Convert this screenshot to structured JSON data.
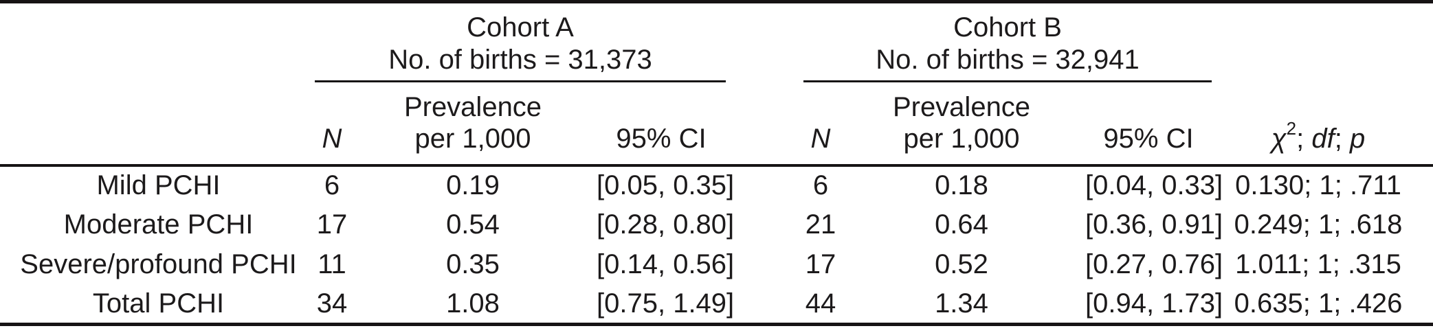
{
  "table": {
    "groups": [
      {
        "name": "Cohort A",
        "births_label": "No. of births = 31,373"
      },
      {
        "name": "Cohort B",
        "births_label": "No. of births = 32,941"
      }
    ],
    "columns": {
      "n_label": "N",
      "prevalence_line1": "Prevalence",
      "prevalence_line2": "per 1,000",
      "ci_label": "95% CI",
      "chi_header": {
        "symbol": "χ",
        "superscript": "2",
        "sep1": "; ",
        "df": "df",
        "sep2": "; ",
        "p": "p"
      }
    },
    "rows": [
      {
        "label": "Mild PCHI",
        "a_n": "6",
        "a_prev": "0.19",
        "a_ci": "[0.05, 0.35]",
        "b_n": "6",
        "b_prev": "0.18",
        "b_ci": "[0.04, 0.33]",
        "chi": "0.130; 1; .711"
      },
      {
        "label": "Moderate PCHI",
        "a_n": "17",
        "a_prev": "0.54",
        "a_ci": "[0.28, 0.80]",
        "b_n": "21",
        "b_prev": "0.64",
        "b_ci": "[0.36, 0.91]",
        "chi": "0.249; 1; .618"
      },
      {
        "label": "Severe/profound PCHI",
        "a_n": "11",
        "a_prev": "0.35",
        "a_ci": "[0.14, 0.56]",
        "b_n": "17",
        "b_prev": "0.52",
        "b_ci": "[0.27, 0.76]",
        "chi": "1.011; 1; .315"
      },
      {
        "label": "Total PCHI",
        "a_n": "34",
        "a_prev": "1.08",
        "a_ci": "[0.75, 1.49]",
        "b_n": "44",
        "b_prev": "1.34",
        "b_ci": "[0.94, 1.73]",
        "chi": "0.635; 1; .426"
      }
    ]
  },
  "colors": {
    "text": "#1c1a1b",
    "rule": "#161314",
    "background": "#ffffff"
  }
}
